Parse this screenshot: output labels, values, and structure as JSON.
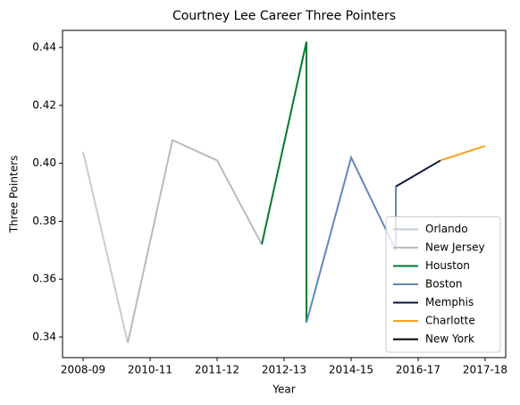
{
  "chart_data": {
    "type": "line",
    "title": "Courtney Lee Career Three Pointers",
    "x_label": "Year",
    "y_label": "Three Pointers",
    "xlim": [
      -0.46,
      9.46
    ],
    "ylim": [
      0.3329,
      0.4459
    ],
    "xticks": [
      {
        "value": 0,
        "label": "2008-09"
      },
      {
        "value": 1.5,
        "label": "2010-11"
      },
      {
        "value": 3,
        "label": "2011-12"
      },
      {
        "value": 4.5,
        "label": "2012-13"
      },
      {
        "value": 6,
        "label": "2014-15"
      },
      {
        "value": 7.5,
        "label": "2016-17"
      },
      {
        "value": 9,
        "label": "2017-18"
      }
    ],
    "yticks": [
      0.34,
      0.36,
      0.38,
      {
        "value": 0.4,
        "label": "0.40"
      },
      0.42,
      0.44
    ],
    "legend": "lower right",
    "series": [
      {
        "name": "Orlando",
        "color": "#c4ced4",
        "x": [
          0,
          1
        ],
        "values": [
          0.404,
          0.338
        ]
      },
      {
        "name": "New Jersey",
        "color": "#bbbbbb",
        "x": [
          1,
          2,
          3,
          4
        ],
        "values": [
          0.338,
          0.408,
          0.401,
          0.372
        ]
      },
      {
        "name": "Houston",
        "color": "#007a33",
        "x": [
          4,
          5,
          5
        ],
        "values": [
          0.372,
          0.442,
          0.345
        ]
      },
      {
        "name": "Boston",
        "color": "#6189b9",
        "x": [
          5,
          6,
          7,
          7
        ],
        "values": [
          0.345,
          0.402,
          0.37,
          0.392
        ]
      },
      {
        "name": "Memphis",
        "color": "#12173f",
        "x": [
          7,
          8
        ],
        "values": [
          0.392,
          0.401
        ]
      },
      {
        "name": "Charlotte",
        "color": "#f9a01b",
        "x": [
          8,
          9
        ],
        "values": [
          0.401,
          0.406
        ]
      },
      {
        "name": "New York",
        "color": "#000000",
        "x": [],
        "values": []
      }
    ]
  }
}
